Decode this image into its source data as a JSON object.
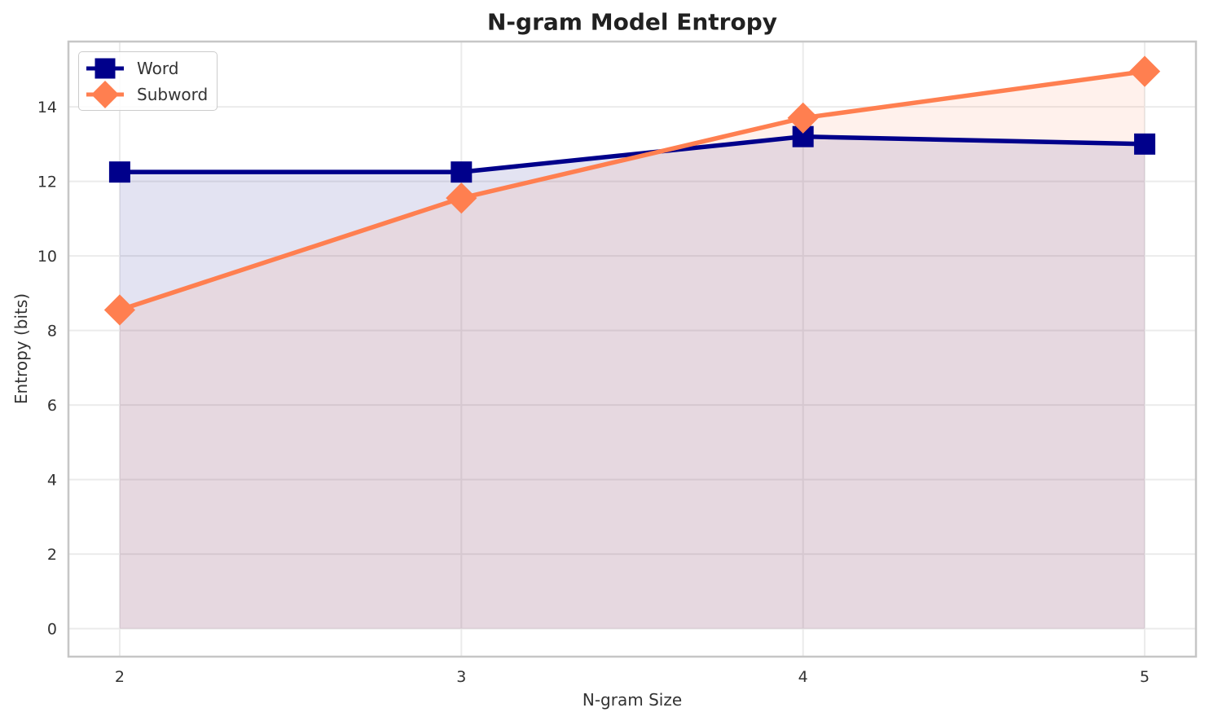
{
  "chart_data": {
    "type": "line",
    "title": "N-gram Model Entropy",
    "xlabel": "N-gram Size",
    "ylabel": "Entropy (bits)",
    "x": [
      2,
      3,
      4,
      5
    ],
    "series": [
      {
        "name": "Word",
        "color": "#00008B",
        "marker": "square",
        "values": [
          12.25,
          12.25,
          13.2,
          13.0
        ]
      },
      {
        "name": "Subword",
        "color": "#FF7F50",
        "marker": "diamond",
        "values": [
          8.55,
          11.55,
          13.7,
          14.95
        ]
      }
    ],
    "xlim": [
      1.85,
      5.15
    ],
    "ylim": [
      -0.75,
      15.75
    ],
    "xticks": [
      2,
      3,
      4,
      5
    ],
    "yticks": [
      0,
      2,
      4,
      6,
      8,
      10,
      12,
      14
    ],
    "grid": true,
    "legend_position": "upper left",
    "fill_to": 0,
    "fill_alpha": 0.11,
    "line_width": 5.5,
    "grid_color": "#ebebeb",
    "spine_color": "#c6c6c6",
    "tick_label_color": "#333333",
    "background_color": "#ffffff"
  }
}
